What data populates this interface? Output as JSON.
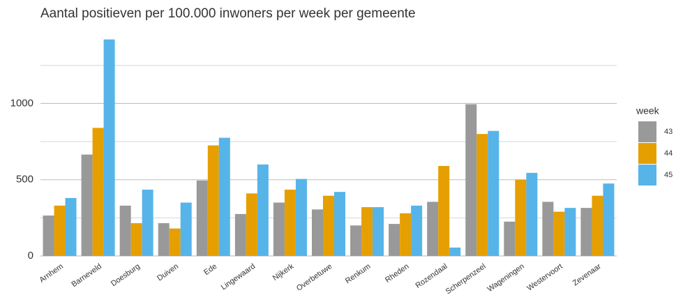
{
  "chart_data": {
    "type": "bar",
    "title": "Aantal positieven per 100.000 inwoners per week per gemeente",
    "categories": [
      "Arnhem",
      "Barneveld",
      "Doesburg",
      "Duiven",
      "Ede",
      "Lingewaard",
      "Nijkerk",
      "Overbetuwe",
      "Renkum",
      "Rheden",
      "Rozendaal",
      "Scherpenzeel",
      "Wageningen",
      "Westervoort",
      "Zevenaar"
    ],
    "legend_title": "week",
    "series": [
      {
        "name": "43",
        "color": "#999999",
        "values": [
          265,
          665,
          330,
          215,
          495,
          275,
          350,
          305,
          200,
          210,
          355,
          995,
          225,
          355,
          315
        ]
      },
      {
        "name": "44",
        "color": "#e69f00",
        "values": [
          330,
          840,
          215,
          180,
          725,
          410,
          435,
          395,
          320,
          280,
          590,
          800,
          500,
          290,
          395
        ]
      },
      {
        "name": "45",
        "color": "#56b4e9",
        "values": [
          380,
          1420,
          435,
          350,
          775,
          600,
          505,
          420,
          320,
          330,
          55,
          820,
          545,
          315,
          475
        ]
      }
    ],
    "ylim": [
      0,
      1450
    ],
    "yticks": [
      0,
      500,
      1000
    ],
    "minor_yticks": [
      250,
      750,
      1250
    ],
    "grid": true,
    "legend": "right"
  }
}
